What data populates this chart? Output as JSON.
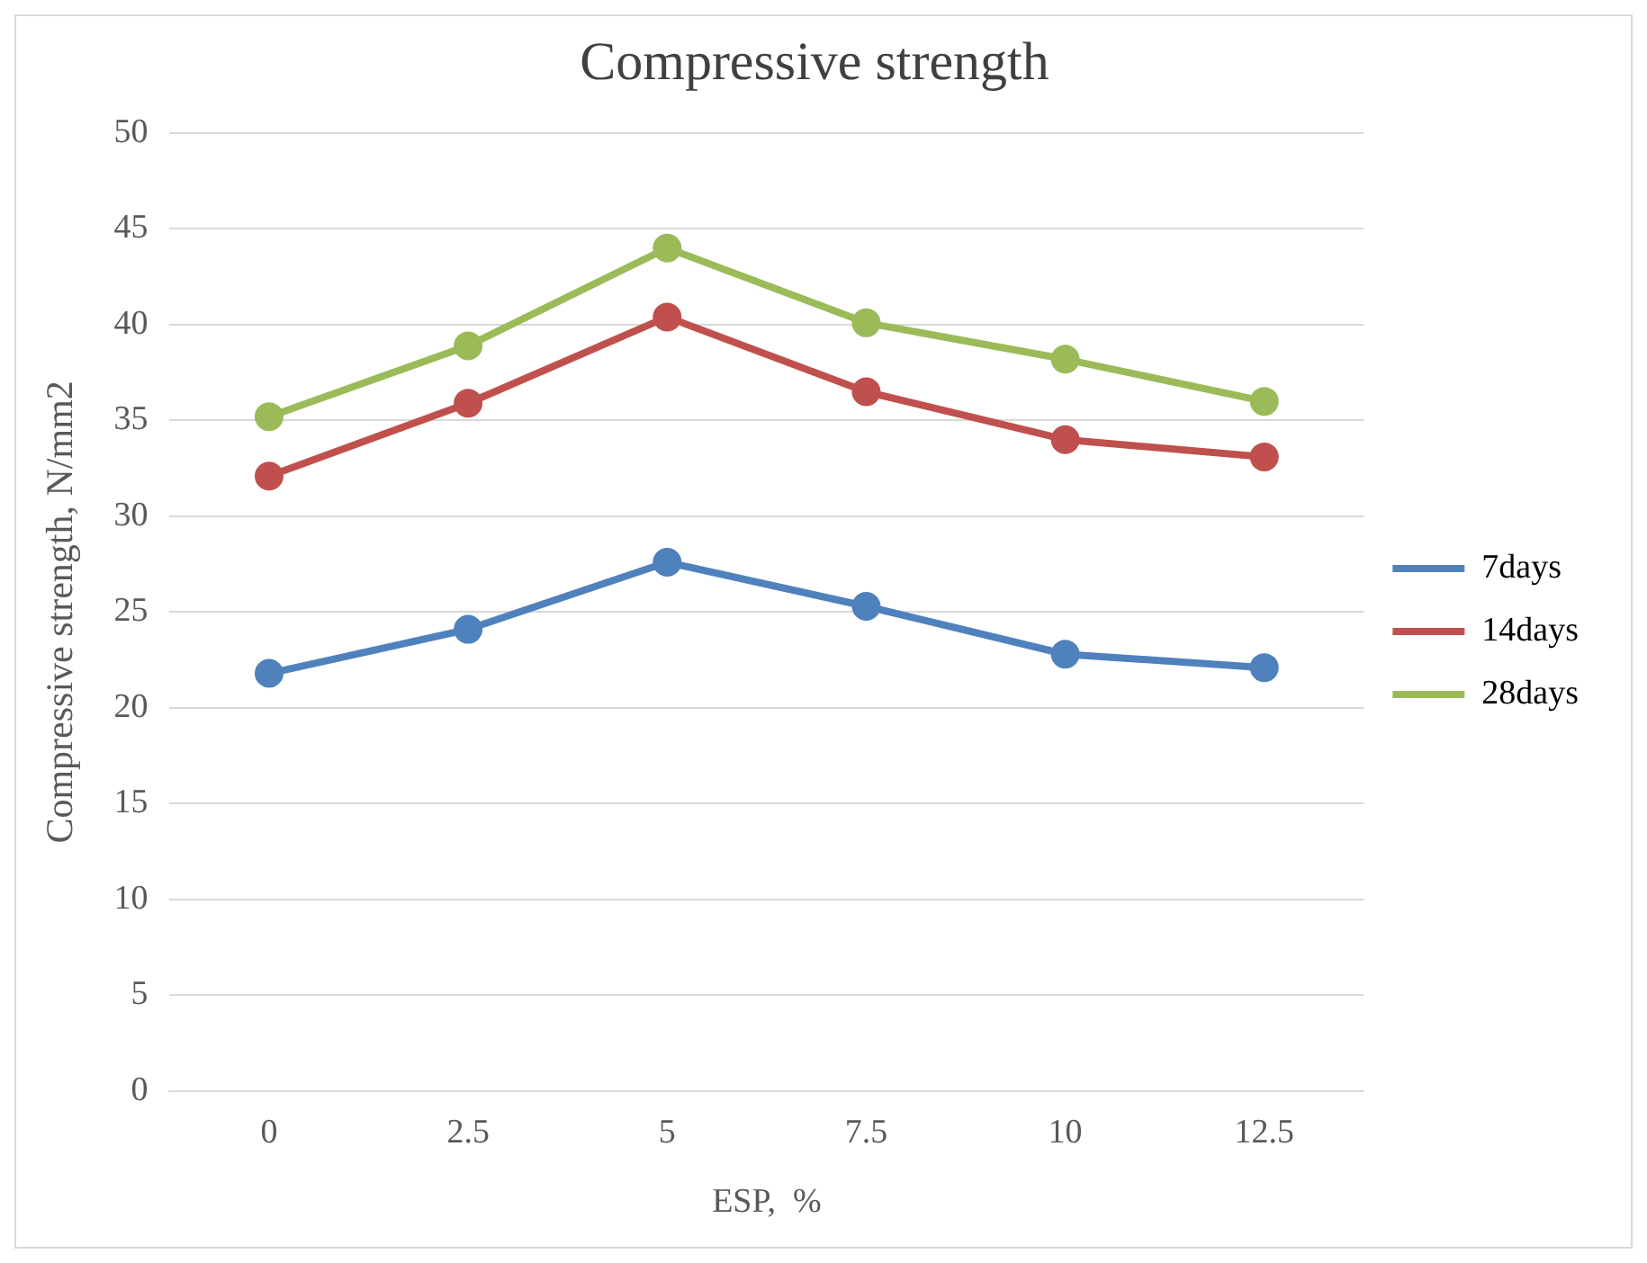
{
  "chart_data": {
    "type": "line",
    "title": "Compressive strength",
    "xlabel": "ESP,  %",
    "ylabel": "Compressive strength, N/mm2",
    "categories": [
      "0",
      "2.5",
      "5",
      "7.5",
      "10",
      "12.5"
    ],
    "series": [
      {
        "name": "7days",
        "color": "#4f81bd",
        "values": [
          21.8,
          24.1,
          27.6,
          25.3,
          22.8,
          22.1
        ]
      },
      {
        "name": "14days",
        "color": "#c0504d",
        "values": [
          32.1,
          35.9,
          40.4,
          36.5,
          34.0,
          33.1
        ]
      },
      {
        "name": "28days",
        "color": "#9bbb59",
        "values": [
          35.2,
          38.9,
          44.0,
          40.1,
          38.2,
          36.0
        ]
      }
    ],
    "ylim": [
      0,
      50
    ],
    "yticks": [
      0,
      5,
      10,
      15,
      20,
      25,
      30,
      35,
      40,
      45,
      50
    ],
    "grid": "y",
    "legend": "right",
    "marker": "circle",
    "line_style": "solid"
  }
}
